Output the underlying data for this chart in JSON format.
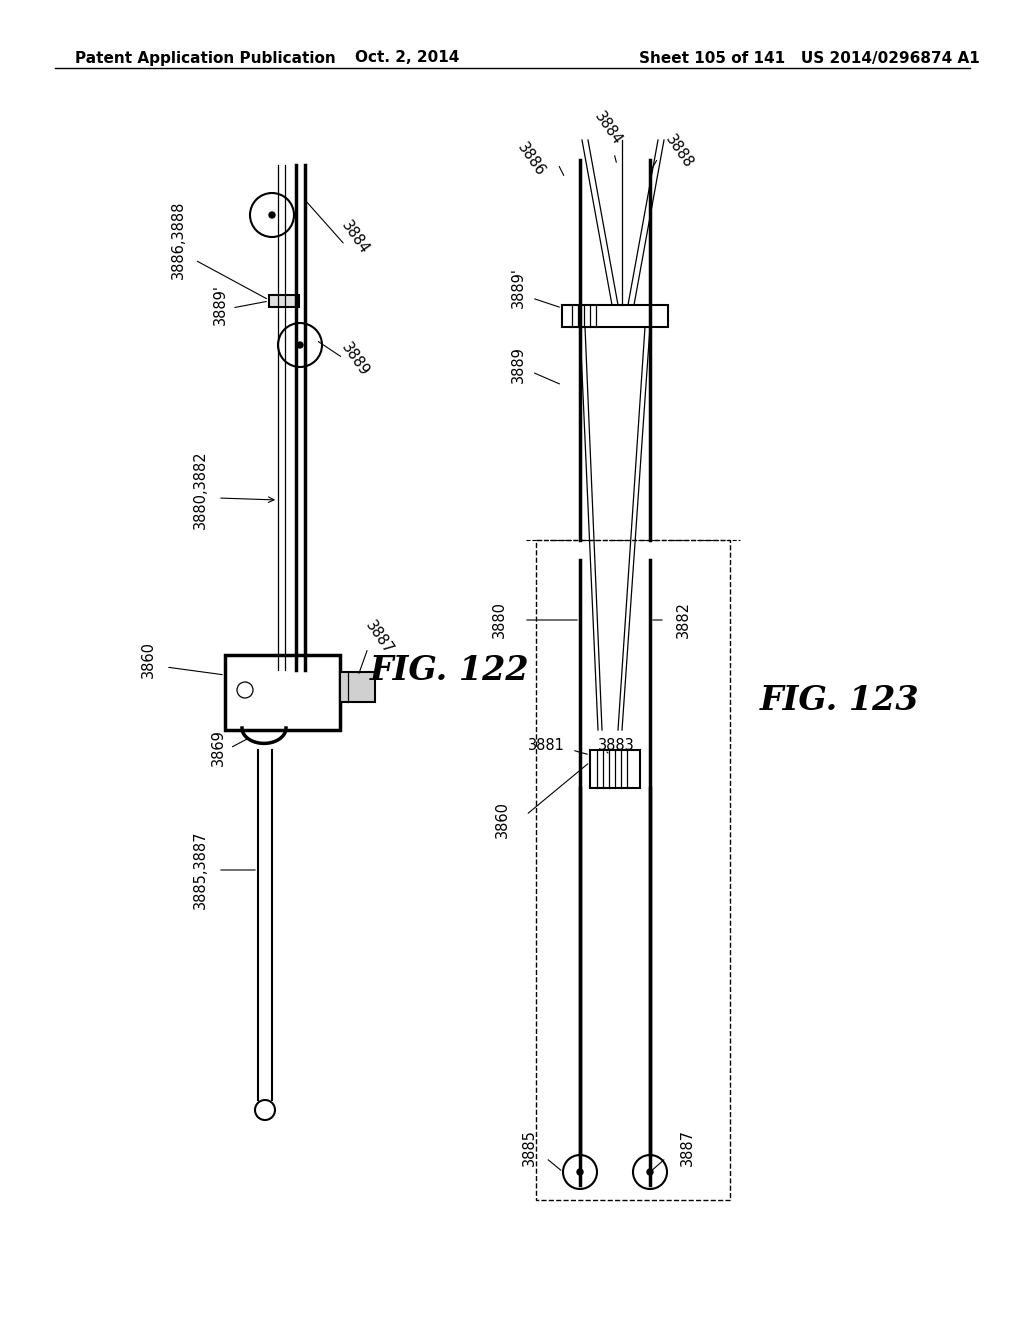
{
  "header_left": "Patent Application Publication",
  "header_mid": "Oct. 2, 2014",
  "header_right": "Sheet 105 of 141   US 2014/0296874 A1",
  "fig122_label": "FIG. 122",
  "fig123_label": "FIG. 123",
  "bg_color": "#ffffff",
  "line_color": "#000000",
  "fig_label_fontsize": 24,
  "header_fontsize": 11,
  "annot_fontsize": 10.5
}
